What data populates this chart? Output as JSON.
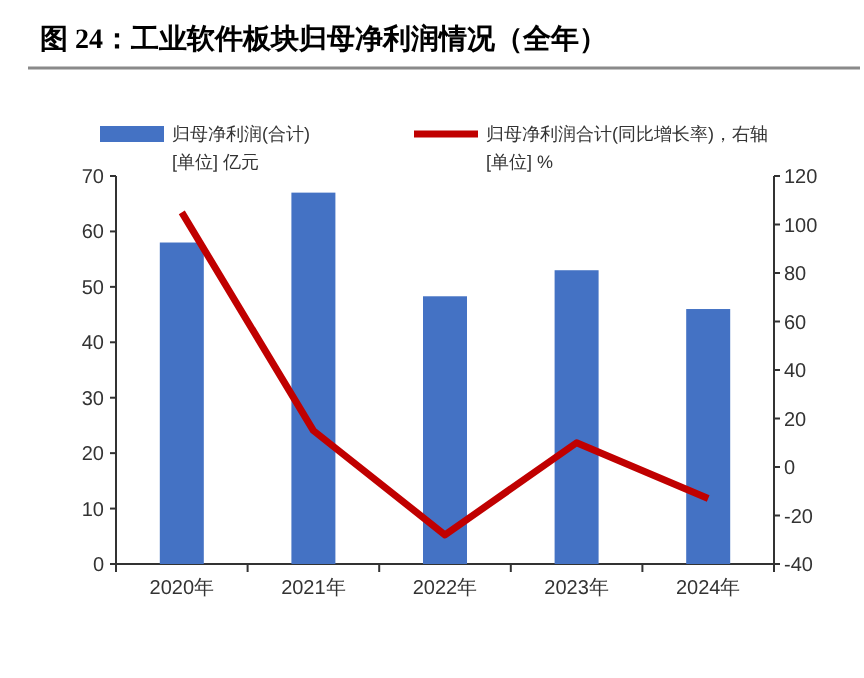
{
  "chart_data": {
    "type": "bar",
    "title": "图 24：工业软件板块归母净利润情况（全年）",
    "ylabel": "[单位] 亿元",
    "y2label": "[单位] %",
    "categories": [
      "2020年",
      "2021年",
      "2022年",
      "2023年",
      "2024年"
    ],
    "series": [
      {
        "name": "归母净利润(合计)",
        "color": "#4472c4",
        "values": [
          58,
          67,
          48.3,
          53,
          46
        ]
      },
      {
        "name": "归母净利润合计(同比增长率)，右轴",
        "color": "#c00000",
        "type": "line",
        "axis": "y2",
        "values": [
          105,
          15,
          -28,
          10,
          -13
        ]
      }
    ],
    "ylim": [
      0,
      70
    ],
    "yticks": [
      0,
      10,
      20,
      30,
      40,
      50,
      60,
      70
    ],
    "y2lim": [
      -40,
      120
    ],
    "y2ticks": [
      -40,
      -20,
      0,
      20,
      40,
      60,
      80,
      100,
      120
    ],
    "legend": "top"
  }
}
